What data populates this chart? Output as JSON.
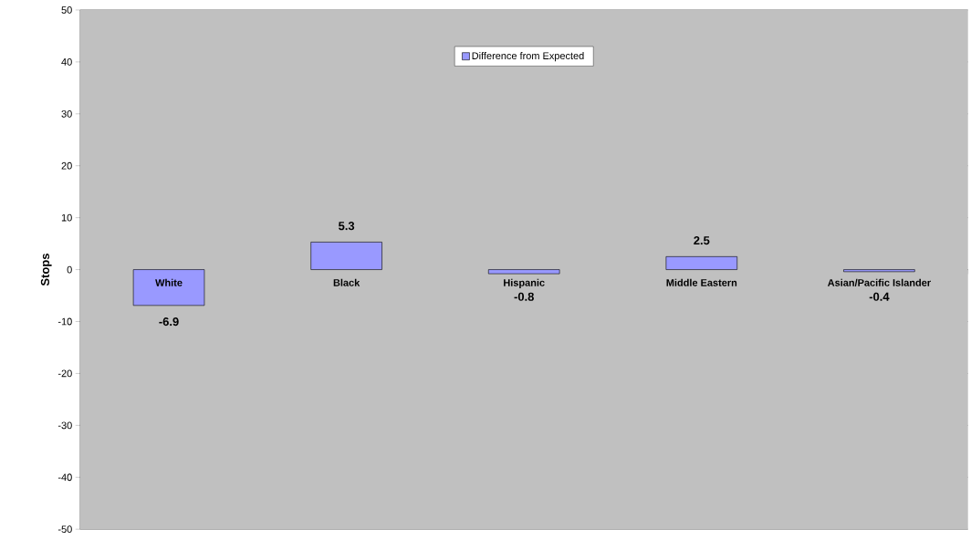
{
  "chart_data": {
    "type": "bar",
    "ylabel": "Stops",
    "categories": [
      "White",
      "Black",
      "Hispanic",
      "Middle Eastern",
      "Asian/Pacific Islander"
    ],
    "series": [
      {
        "name": "Difference from Expected",
        "color": "#9999ff",
        "values": [
          -6.9,
          5.3,
          -0.8,
          2.5,
          -0.4
        ],
        "value_labels": [
          "-6.9",
          "5.3",
          "-0.8",
          "2.5",
          "-0.4"
        ]
      }
    ],
    "ylim": [
      -50,
      50
    ],
    "yticks": [
      -50,
      -40,
      -30,
      -20,
      -10,
      0,
      10,
      20,
      30,
      40,
      50
    ],
    "grid": "y",
    "legend": "top"
  }
}
